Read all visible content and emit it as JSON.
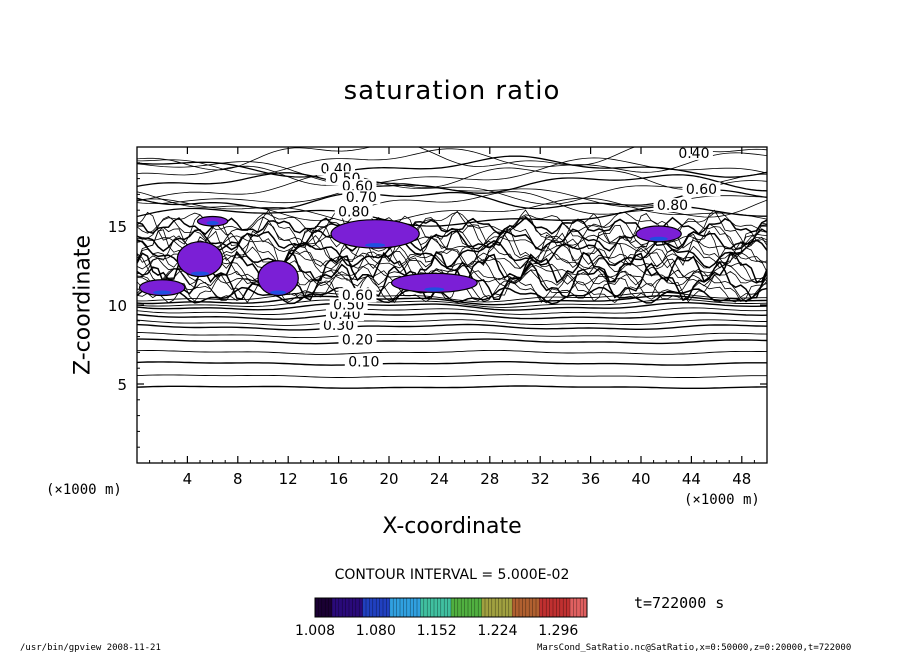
{
  "chart_data": {
    "type": "contour",
    "title": "saturation ratio",
    "xlabel": "X-coordinate",
    "ylabel": "Z-coordinate",
    "x_unit": "(×1000 m)",
    "y_unit": "(×1000 m)",
    "xlim": [
      0,
      50
    ],
    "ylim": [
      0,
      20
    ],
    "x_ticks": [
      4,
      8,
      12,
      16,
      20,
      24,
      28,
      32,
      36,
      40,
      44,
      48
    ],
    "y_ticks": [
      5,
      10,
      15
    ],
    "contour_labels": [
      {
        "text": "0.10",
        "x": 18,
        "z": 6.3
      },
      {
        "text": "0.20",
        "x": 17.5,
        "z": 7.7
      },
      {
        "text": "0.30",
        "x": 16,
        "z": 8.6
      },
      {
        "text": "0.40",
        "x": 16.5,
        "z": 9.3
      },
      {
        "text": "0.50",
        "x": 16.8,
        "z": 9.9
      },
      {
        "text": "0.60",
        "x": 17.5,
        "z": 10.5
      },
      {
        "text": "0.40",
        "x": 15.8,
        "z": 18.5
      },
      {
        "text": "0.50",
        "x": 16.5,
        "z": 17.9
      },
      {
        "text": "0.60",
        "x": 17.5,
        "z": 17.4
      },
      {
        "text": "0.70",
        "x": 17.8,
        "z": 16.7
      },
      {
        "text": "0.80",
        "x": 17.2,
        "z": 15.8
      },
      {
        "text": "0.40",
        "x": 44.2,
        "z": 19.5
      },
      {
        "text": "0.60",
        "x": 44.8,
        "z": 17.2
      },
      {
        "text": "0.80",
        "x": 42.5,
        "z": 16.2
      }
    ],
    "filled_regions": [
      {
        "x": [
          4.8,
          7.2
        ],
        "z": [
          15.0,
          15.6
        ]
      },
      {
        "x": [
          3.2,
          6.8
        ],
        "z": [
          11.8,
          14.0
        ]
      },
      {
        "x": [
          0.2,
          3.8
        ],
        "z": [
          10.6,
          11.6
        ]
      },
      {
        "x": [
          9.6,
          12.8
        ],
        "z": [
          10.6,
          12.8
        ]
      },
      {
        "x": [
          15.4,
          22.4
        ],
        "z": [
          13.6,
          15.4
        ]
      },
      {
        "x": [
          20.2,
          27.0
        ],
        "z": [
          10.8,
          12.0
        ]
      },
      {
        "x": [
          39.6,
          43.2
        ],
        "z": [
          14.0,
          15.0
        ]
      }
    ],
    "interval_label": "CONTOUR INTERVAL = 5.000E-02",
    "time_label": "t=722000 s",
    "colorbar_ticks": [
      "1.008",
      "1.080",
      "1.152",
      "1.224",
      "1.296"
    ],
    "colorbar_range": [
      1.008,
      1.33
    ],
    "footer_left": "/usr/bin/gpview   2008-11-21",
    "footer_right": "MarsCond_SatRatio.nc@SatRatio,x=0:50000,z=0:20000,t=722000"
  }
}
